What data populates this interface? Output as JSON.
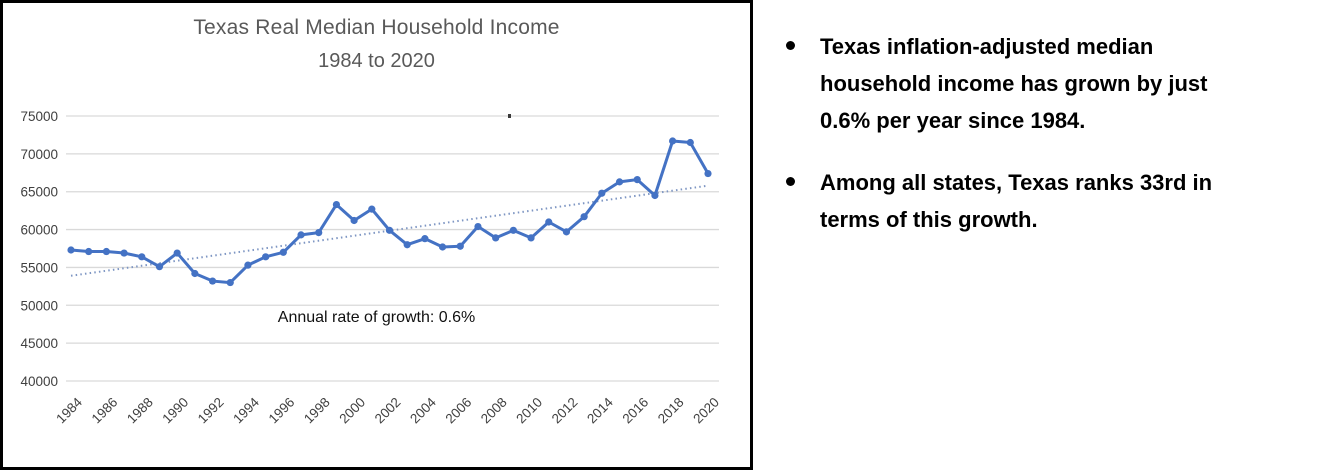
{
  "chart_data": {
    "type": "line",
    "title": "Texas Real Median Household Income",
    "subtitle": "1984 to 2020",
    "annotation": "Annual rate of growth: 0.6%",
    "x": [
      1984,
      1985,
      1986,
      1987,
      1988,
      1989,
      1990,
      1991,
      1992,
      1993,
      1994,
      1995,
      1996,
      1997,
      1998,
      1999,
      2000,
      2001,
      2002,
      2003,
      2004,
      2005,
      2006,
      2007,
      2008,
      2009,
      2010,
      2011,
      2012,
      2013,
      2014,
      2015,
      2016,
      2017,
      2018,
      2019,
      2020
    ],
    "values": [
      57300,
      57100,
      57100,
      56900,
      56400,
      55100,
      56900,
      54200,
      53200,
      53000,
      55300,
      56400,
      57000,
      59300,
      59600,
      63300,
      61200,
      62700,
      59900,
      58000,
      58800,
      57700,
      57800,
      60400,
      58900,
      59900,
      58900,
      61000,
      59700,
      61700,
      64800,
      66300,
      66600,
      64500,
      71700,
      71500,
      67400
    ],
    "x_tick_labels": [
      "1984",
      "1986",
      "1988",
      "1990",
      "1992",
      "1994",
      "1996",
      "1998",
      "2000",
      "2002",
      "2004",
      "2006",
      "2008",
      "2010",
      "2012",
      "2014",
      "2016",
      "2018",
      "2020"
    ],
    "y_ticks": [
      75000,
      70000,
      65000,
      60000,
      55000,
      50000,
      45000,
      40000
    ],
    "ylim": [
      40000,
      75000
    ],
    "xlabel": "",
    "ylabel": "",
    "grid": true,
    "legend": "none",
    "trendline": {
      "style": "dotted",
      "start_value": 53900,
      "end_value": 65800,
      "meaning": "0.6% annual growth trend"
    },
    "series_color": "#4472C4",
    "trendline_color": "#7E96C3",
    "gridline_color": "#D9D9D9",
    "axis_label_color": "#404040",
    "title_color": "#595959"
  },
  "bullets": [
    {
      "lines": [
        "Texas inflation-adjusted median",
        "household income has grown by just",
        "0.6% per year since 1984."
      ]
    },
    {
      "lines": [
        "Among all states, Texas ranks 33rd in",
        "terms of this growth."
      ]
    }
  ]
}
